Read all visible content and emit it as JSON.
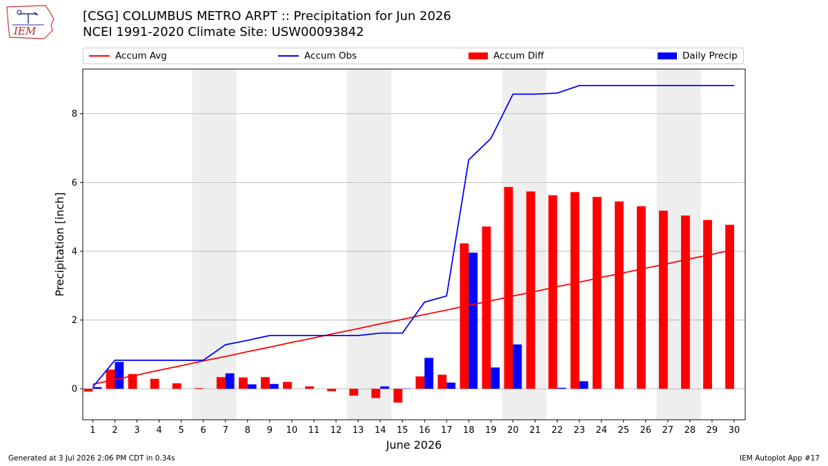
{
  "header": {
    "logo_text": "IEM",
    "title_line1": "[CSG] COLUMBUS METRO ARPT :: Precipitation for Jun 2026",
    "title_line2": "NCEI 1991-2020 Climate Site: USW00093842"
  },
  "footer": {
    "generated": "Generated at 3 Jul 2026 2:06 PM CDT in 0.34s",
    "app": "IEM Autoplot App #17"
  },
  "colors": {
    "avg": "#ff0000",
    "obs": "#0000ff",
    "diff": "#ff0000",
    "daily": "#0000ff",
    "weekend": "#eeeeee",
    "grid": "#b0b0b0"
  },
  "chart_data": {
    "type": "bar",
    "xlabel": "June 2026",
    "ylabel": "Precipitation [inch]",
    "ylim": [
      -0.9,
      9.3
    ],
    "yticks": [
      0,
      2,
      4,
      6,
      8
    ],
    "grid": "horizontal",
    "legend_placement": "top",
    "categories": [
      "1",
      "2",
      "3",
      "4",
      "5",
      "6",
      "7",
      "8",
      "9",
      "10",
      "11",
      "12",
      "13",
      "14",
      "15",
      "16",
      "17",
      "18",
      "19",
      "20",
      "21",
      "22",
      "23",
      "24",
      "25",
      "26",
      "27",
      "28",
      "29",
      "30"
    ],
    "weekend_shading": [
      [
        6,
        7
      ],
      [
        13,
        14
      ],
      [
        20,
        21
      ],
      [
        27,
        28
      ]
    ],
    "series": [
      {
        "name": "Accum Avg",
        "kind": "line",
        "color": "#ff0000",
        "values": [
          0.13,
          0.27,
          0.4,
          0.54,
          0.67,
          0.81,
          0.94,
          1.08,
          1.21,
          1.35,
          1.48,
          1.62,
          1.75,
          1.89,
          2.02,
          2.16,
          2.29,
          2.43,
          2.56,
          2.7,
          2.83,
          2.97,
          3.1,
          3.24,
          3.37,
          3.51,
          3.64,
          3.78,
          3.91,
          4.05
        ]
      },
      {
        "name": "Accum Obs",
        "kind": "line",
        "color": "#0000ff",
        "values": [
          0.05,
          0.83,
          0.83,
          0.83,
          0.83,
          0.83,
          1.28,
          1.41,
          1.55,
          1.55,
          1.55,
          1.55,
          1.55,
          1.62,
          1.62,
          2.52,
          2.7,
          6.66,
          7.28,
          8.57,
          8.57,
          8.6,
          8.82,
          8.82,
          8.82,
          8.82,
          8.82,
          8.82,
          8.82,
          8.82
        ]
      },
      {
        "name": "Accum Diff",
        "kind": "bar",
        "color": "#ff0000",
        "values": [
          -0.08,
          0.56,
          0.43,
          0.29,
          0.16,
          0.02,
          0.34,
          0.33,
          0.34,
          0.2,
          0.07,
          -0.07,
          -0.2,
          -0.27,
          -0.4,
          0.36,
          0.41,
          4.23,
          4.72,
          5.87,
          5.74,
          5.63,
          5.72,
          5.58,
          5.45,
          5.31,
          5.18,
          5.04,
          4.91,
          4.77
        ]
      },
      {
        "name": "Daily Precip",
        "kind": "bar",
        "color": "#0000ff",
        "values": [
          0.05,
          0.78,
          0,
          0,
          0,
          0,
          0.45,
          0.13,
          0.14,
          0,
          0,
          0,
          0,
          0.07,
          0.01,
          0.9,
          0.18,
          3.96,
          0.62,
          1.29,
          0,
          0.03,
          0.22,
          0,
          0,
          0,
          0,
          0,
          0,
          0
        ]
      }
    ]
  }
}
